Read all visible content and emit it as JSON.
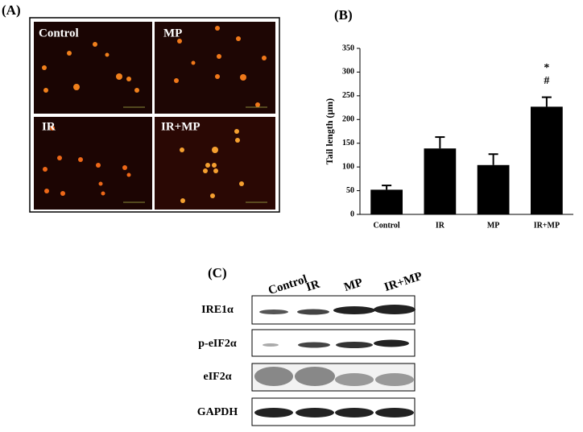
{
  "panel_a": {
    "label": "(A)",
    "images": [
      "Control",
      "MP",
      "IR",
      "IR+MP"
    ]
  },
  "chart_data": {
    "type": "bar",
    "panel_label": "(B)",
    "ylabel": "Tail length (μm)",
    "categories": [
      "Control",
      "IR",
      "MP",
      "IR+MP"
    ],
    "values": [
      52,
      139,
      104,
      227
    ],
    "errors": [
      9,
      24,
      23,
      20
    ],
    "annotations": [
      "*",
      "#"
    ],
    "color": "#000000",
    "ylim": [
      0,
      350
    ],
    "yticks": [
      0,
      50,
      100,
      150,
      200,
      250,
      300,
      350
    ]
  },
  "panel_c": {
    "label": "(C)",
    "lanes": [
      "Control",
      "IR",
      "MP",
      "IR+MP"
    ],
    "rows": [
      "IRE1α",
      "p-eIF2α",
      "eIF2α",
      "GAPDH"
    ]
  }
}
